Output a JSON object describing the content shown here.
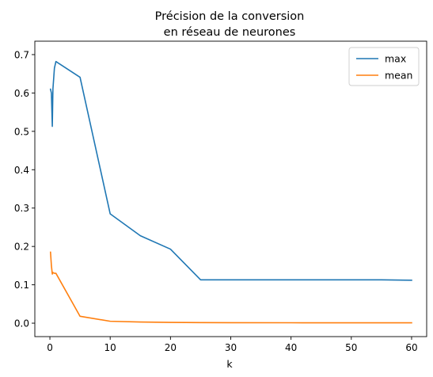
{
  "chart_data": {
    "type": "line",
    "title_lines": [
      "Précision de la conversion",
      "en réseau de neurones"
    ],
    "xlabel": "k",
    "ylabel": "",
    "xlim": [
      -2.5,
      62.5
    ],
    "ylim": [
      -0.035,
      0.735
    ],
    "xticks": [
      0,
      10,
      20,
      30,
      40,
      50,
      60
    ],
    "xtick_labels": [
      "0",
      "10",
      "20",
      "30",
      "40",
      "50",
      "60"
    ],
    "yticks": [
      0.0,
      0.1,
      0.2,
      0.3,
      0.4,
      0.5,
      0.6,
      0.7
    ],
    "ytick_labels": [
      "0.0",
      "0.1",
      "0.2",
      "0.3",
      "0.4",
      "0.5",
      "0.6",
      "0.7"
    ],
    "grid": false,
    "legend": "top-right",
    "series": [
      {
        "name": "max",
        "color": "#1f77b4",
        "x": [
          0.1,
          0.25,
          0.4,
          0.5,
          0.75,
          1,
          5,
          10,
          15,
          20,
          25,
          30,
          40,
          50,
          55,
          60
        ],
        "y": [
          0.61,
          0.6,
          0.513,
          0.61,
          0.665,
          0.682,
          0.641,
          0.285,
          0.228,
          0.193,
          0.113,
          0.113,
          0.113,
          0.113,
          0.113,
          0.112
        ]
      },
      {
        "name": "mean",
        "color": "#ff7f0e",
        "x": [
          0.1,
          0.25,
          0.4,
          0.5,
          0.75,
          1,
          5,
          10,
          15,
          20,
          25,
          30,
          40,
          50,
          55,
          60
        ],
        "y": [
          0.185,
          0.15,
          0.128,
          0.132,
          0.13,
          0.13,
          0.018,
          0.005,
          0.003,
          0.002,
          0.0015,
          0.0012,
          0.0011,
          0.001,
          0.001,
          0.001
        ]
      }
    ]
  }
}
